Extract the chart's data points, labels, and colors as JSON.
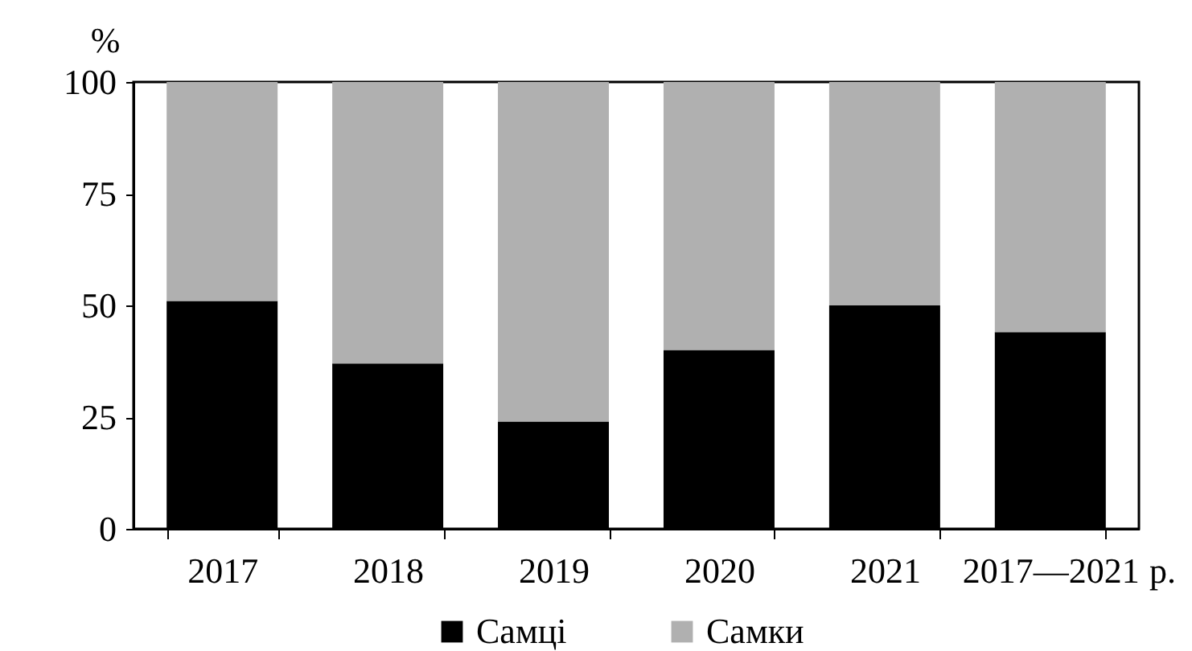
{
  "chart_data": {
    "type": "bar",
    "stacked": true,
    "categories": [
      "2017",
      "2018",
      "2019",
      "2020",
      "2021",
      "2017—2021"
    ],
    "xlabel": "р.",
    "ylabel": "%",
    "series": [
      {
        "name": "Самці",
        "color": "#000000",
        "values": [
          51,
          37,
          24,
          40,
          50,
          44
        ]
      },
      {
        "name": "Самки",
        "color": "#b0b0b0",
        "values": [
          49,
          63,
          76,
          60,
          50,
          56
        ]
      }
    ],
    "ylim": [
      0,
      100
    ],
    "yticks": [
      0,
      25,
      50,
      75,
      100
    ],
    "grid": false,
    "legend": "bottom"
  }
}
